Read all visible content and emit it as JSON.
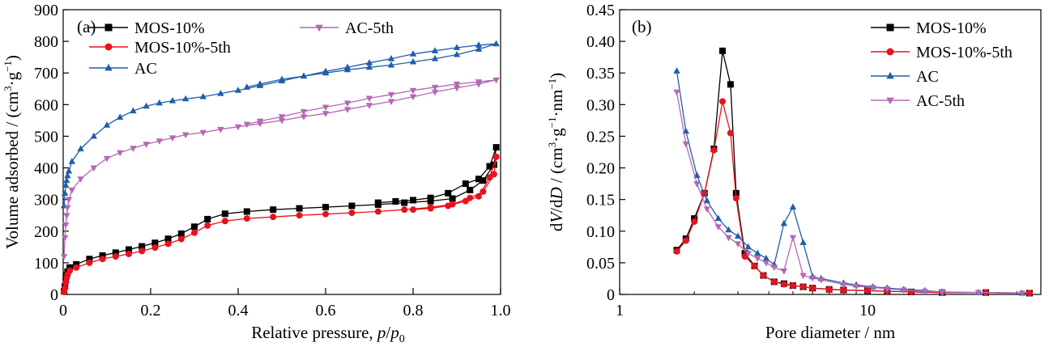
{
  "chart_data": [
    {
      "type": "line",
      "panel_label": "(a)",
      "xlabel": "Relative pressure, p/p",
      "xlabel_main": "Relative pressure, ",
      "xlabel_var": "p",
      "xlabel_sep": "/",
      "xlabel_var2": "p",
      "xlabel_sub": "0",
      "ylabel": "Volume adsorbed / (cm3·g-1)",
      "ylabel_main": "Volume adsorbed / (cm",
      "ylabel_sup1": "3",
      "ylabel_mid": "·g",
      "ylabel_sup2": "−1",
      "ylabel_end": ")",
      "xlim": [
        0,
        1.0
      ],
      "ylim": [
        0,
        900
      ],
      "xticks": [
        0,
        0.2,
        0.4,
        0.6,
        0.8,
        1.0
      ],
      "xtick_labels": [
        "0",
        "0.2",
        "0.4",
        "0.6",
        "0.8",
        "1.0"
      ],
      "yticks": [
        0,
        100,
        200,
        300,
        400,
        500,
        600,
        700,
        800,
        900
      ],
      "ytick_labels": [
        "0",
        "100",
        "200",
        "300",
        "400",
        "500",
        "600",
        "700",
        "800",
        "900"
      ],
      "legend": "top, two columns",
      "series": [
        {
          "name": "MOS-10%",
          "color": "#000000",
          "marker": "square",
          "x": [
            0.002,
            0.004,
            0.006,
            0.008,
            0.01,
            0.015,
            0.03,
            0.06,
            0.09,
            0.12,
            0.15,
            0.18,
            0.21,
            0.24,
            0.27,
            0.3,
            0.33,
            0.37,
            0.42,
            0.48,
            0.54,
            0.6,
            0.66,
            0.72,
            0.78,
            0.84,
            0.89,
            0.93,
            0.96,
            0.985,
            0.99,
            0.975,
            0.95,
            0.92,
            0.88,
            0.84,
            0.8,
            0.76,
            0.72
          ],
          "y": [
            10,
            25,
            45,
            60,
            72,
            85,
            95,
            112,
            123,
            132,
            142,
            152,
            163,
            176,
            192,
            214,
            238,
            255,
            262,
            268,
            272,
            276,
            280,
            284,
            290,
            295,
            303,
            330,
            360,
            410,
            465,
            405,
            365,
            350,
            320,
            305,
            298,
            294,
            290
          ]
        },
        {
          "name": "MOS-10%-5th",
          "color": "#e8121c",
          "marker": "circle",
          "x": [
            0.002,
            0.004,
            0.006,
            0.008,
            0.01,
            0.015,
            0.03,
            0.06,
            0.09,
            0.12,
            0.15,
            0.18,
            0.21,
            0.24,
            0.27,
            0.3,
            0.33,
            0.37,
            0.42,
            0.48,
            0.54,
            0.6,
            0.66,
            0.72,
            0.78,
            0.84,
            0.89,
            0.93,
            0.96,
            0.985,
            0.99,
            0.975,
            0.95,
            0.92,
            0.88,
            0.84,
            0.8
          ],
          "y": [
            8,
            20,
            38,
            52,
            62,
            75,
            85,
            100,
            112,
            120,
            128,
            137,
            148,
            160,
            175,
            195,
            218,
            232,
            240,
            245,
            250,
            254,
            258,
            262,
            268,
            275,
            285,
            305,
            325,
            380,
            435,
            370,
            310,
            295,
            280,
            272,
            268
          ]
        },
        {
          "name": "AC",
          "color": "#1f5fab",
          "marker": "triangle-up",
          "x": [
            0.002,
            0.004,
            0.006,
            0.008,
            0.01,
            0.013,
            0.02,
            0.04,
            0.07,
            0.1,
            0.13,
            0.16,
            0.19,
            0.22,
            0.25,
            0.28,
            0.32,
            0.36,
            0.4,
            0.45,
            0.5,
            0.55,
            0.6,
            0.65,
            0.7,
            0.75,
            0.8,
            0.85,
            0.9,
            0.95,
            0.99,
            0.95,
            0.9,
            0.85,
            0.8,
            0.75,
            0.7,
            0.65,
            0.6,
            0.55,
            0.5,
            0.45,
            0.42
          ],
          "y": [
            280,
            320,
            345,
            360,
            375,
            390,
            420,
            460,
            500,
            535,
            560,
            580,
            595,
            605,
            612,
            618,
            625,
            635,
            645,
            660,
            675,
            690,
            700,
            710,
            718,
            725,
            735,
            745,
            758,
            775,
            792,
            788,
            780,
            770,
            760,
            745,
            732,
            718,
            705,
            690,
            680,
            665,
            655
          ]
        },
        {
          "name": "AC-5th",
          "color": "#b468b4",
          "marker": "triangle-down",
          "x": [
            0.002,
            0.004,
            0.006,
            0.008,
            0.01,
            0.013,
            0.02,
            0.04,
            0.07,
            0.1,
            0.13,
            0.16,
            0.19,
            0.22,
            0.25,
            0.28,
            0.32,
            0.36,
            0.4,
            0.45,
            0.5,
            0.55,
            0.6,
            0.65,
            0.7,
            0.75,
            0.8,
            0.85,
            0.9,
            0.95,
            0.99,
            0.95,
            0.9,
            0.85,
            0.8,
            0.75,
            0.7,
            0.65,
            0.6,
            0.55,
            0.5,
            0.45,
            0.42
          ],
          "y": [
            120,
            180,
            220,
            250,
            275,
            300,
            330,
            365,
            400,
            430,
            448,
            462,
            475,
            485,
            495,
            505,
            512,
            522,
            530,
            540,
            550,
            562,
            572,
            585,
            598,
            610,
            625,
            640,
            653,
            665,
            678,
            672,
            665,
            655,
            645,
            632,
            620,
            605,
            592,
            578,
            562,
            548,
            538
          ]
        }
      ]
    },
    {
      "type": "line",
      "panel_label": "(b)",
      "xlabel": "Pore diameter / nm",
      "ylabel": "dV/dD / (cm3·g-1·nm-1)",
      "ylabel_d1": "d",
      "ylabel_v": "V",
      "ylabel_slash": "/d",
      "ylabel_dd": "D",
      "ylabel_main": " / (cm",
      "ylabel_sup1": "3",
      "ylabel_mid1": "·g",
      "ylabel_sup2": "−1",
      "ylabel_mid2": "·nm",
      "ylabel_sup3": "−1",
      "ylabel_end": ")",
      "xscale": "log",
      "xlim": [
        1,
        50
      ],
      "ylim": [
        0,
        0.45
      ],
      "xticks": [
        1,
        10
      ],
      "xtick_labels": [
        "1",
        "10"
      ],
      "yticks": [
        0,
        0.05,
        0.1,
        0.15,
        0.2,
        0.25,
        0.3,
        0.35,
        0.4,
        0.45
      ],
      "ytick_labels": [
        "0",
        "0.05",
        "0.10",
        "0.15",
        "0.20",
        "0.25",
        "0.30",
        "0.35",
        "0.40",
        "0.45"
      ],
      "legend": "top-right",
      "series": [
        {
          "name": "MOS-10%",
          "color": "#000000",
          "marker": "square",
          "x": [
            1.7,
            1.85,
            2.0,
            2.2,
            2.4,
            2.6,
            2.8,
            2.95,
            3.2,
            3.5,
            3.8,
            4.2,
            4.6,
            5.0,
            5.5,
            6.0,
            7.0,
            8.0,
            10,
            12,
            15,
            20,
            30,
            45
          ],
          "y": [
            0.07,
            0.088,
            0.12,
            0.16,
            0.23,
            0.385,
            0.332,
            0.16,
            0.065,
            0.045,
            0.03,
            0.02,
            0.017,
            0.014,
            0.012,
            0.01,
            0.008,
            0.007,
            0.006,
            0.005,
            0.004,
            0.003,
            0.003,
            0.002
          ]
        },
        {
          "name": "MOS-10%-5th",
          "color": "#e8121c",
          "marker": "circle",
          "x": [
            1.7,
            1.85,
            2.0,
            2.2,
            2.4,
            2.6,
            2.8,
            2.95,
            3.2,
            3.5,
            3.8,
            4.2,
            4.6,
            5.0,
            5.5,
            6.0,
            7.0,
            8.0,
            10,
            12,
            15,
            20,
            30,
            45
          ],
          "y": [
            0.068,
            0.085,
            0.115,
            0.16,
            0.228,
            0.305,
            0.255,
            0.152,
            0.06,
            0.045,
            0.03,
            0.02,
            0.016,
            0.014,
            0.012,
            0.01,
            0.008,
            0.007,
            0.006,
            0.005,
            0.004,
            0.003,
            0.003,
            0.002
          ]
        },
        {
          "name": "AC",
          "color": "#1f5fab",
          "marker": "triangle-up",
          "x": [
            1.7,
            1.85,
            2.05,
            2.25,
            2.5,
            2.75,
            3.0,
            3.3,
            3.6,
            3.9,
            4.2,
            4.6,
            5.0,
            5.5,
            6.0,
            6.5,
            8.0,
            9.0,
            10.5,
            12,
            14,
            17,
            20,
            28,
            42
          ],
          "y": [
            0.353,
            0.258,
            0.188,
            0.148,
            0.12,
            0.102,
            0.092,
            0.075,
            0.065,
            0.057,
            0.047,
            0.112,
            0.138,
            0.082,
            0.028,
            0.025,
            0.018,
            0.015,
            0.012,
            0.01,
            0.008,
            0.006,
            0.004,
            0.003,
            0.002
          ]
        },
        {
          "name": "AC-5th",
          "color": "#b468b4",
          "marker": "triangle-down",
          "x": [
            1.7,
            1.85,
            2.05,
            2.25,
            2.5,
            2.75,
            3.0,
            3.3,
            3.6,
            3.9,
            4.2,
            4.6,
            5.0,
            5.5,
            6.0,
            6.5,
            8.0,
            9.0,
            10.5,
            12,
            14,
            17,
            20,
            28,
            42
          ],
          "y": [
            0.32,
            0.238,
            0.175,
            0.135,
            0.107,
            0.09,
            0.08,
            0.065,
            0.057,
            0.05,
            0.043,
            0.037,
            0.09,
            0.03,
            0.026,
            0.023,
            0.016,
            0.013,
            0.011,
            0.009,
            0.007,
            0.005,
            0.004,
            0.003,
            0.002
          ]
        }
      ]
    }
  ]
}
